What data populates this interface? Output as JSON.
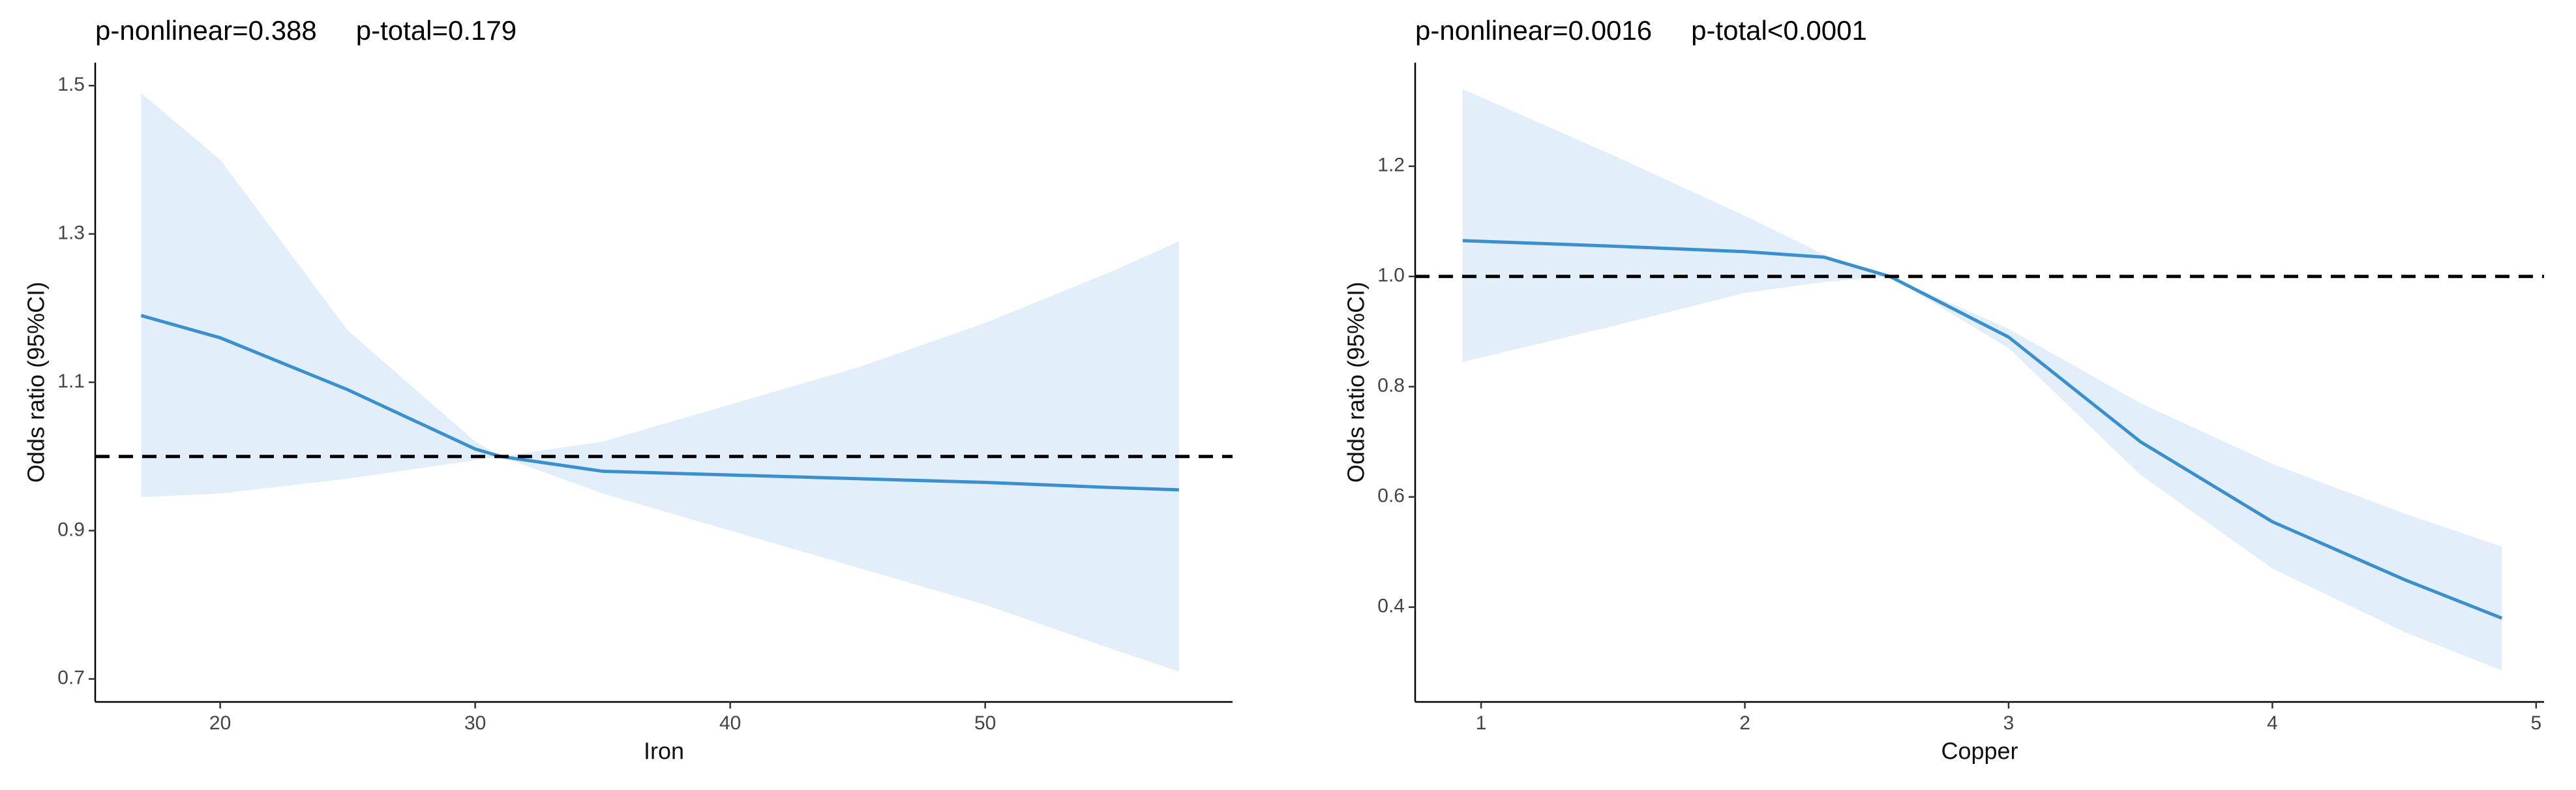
{
  "chart_data": [
    {
      "type": "line",
      "annotations": [
        "p-nonlinear=0.388",
        "p-total=0.179"
      ],
      "x_label": "Iron",
      "y_label": "Odds ratio (95%CI)",
      "x": [
        16.9,
        20,
        25,
        30,
        31,
        35,
        40,
        45,
        50,
        55,
        57.6
      ],
      "values": [
        1.19,
        1.16,
        1.09,
        1.01,
        1.0,
        0.98,
        0.975,
        0.97,
        0.965,
        0.958,
        0.955
      ],
      "ci_upper": [
        1.49,
        1.4,
        1.17,
        1.02,
        1.0,
        1.02,
        1.07,
        1.12,
        1.18,
        1.25,
        1.29
      ],
      "ci_lower": [
        0.945,
        0.95,
        0.97,
        0.995,
        1.0,
        0.95,
        0.9,
        0.85,
        0.8,
        0.74,
        0.71
      ],
      "color": "#3a8fcf",
      "ci_color": "#e2eef9",
      "reference_line": 1,
      "xlim": [
        15.1,
        59.7
      ],
      "xticks": [
        20,
        30,
        40,
        50
      ],
      "ylim": [
        0.669,
        1.531
      ],
      "yticks": [
        0.7,
        0.9,
        1.1,
        1.3,
        1.5
      ],
      "grid": false
    },
    {
      "type": "line",
      "annotations": [
        "p-nonlinear=0.0016",
        "p-total<0.0001"
      ],
      "x_label": "Copper",
      "y_label": "Odds ratio (95%CI)",
      "x": [
        0.93,
        1.5,
        2,
        2.3,
        2.55,
        3,
        3.5,
        4,
        4.5,
        4.87
      ],
      "values": [
        1.065,
        1.055,
        1.045,
        1.035,
        1.0,
        0.89,
        0.7,
        0.555,
        0.45,
        0.38
      ],
      "ci_upper": [
        1.34,
        1.22,
        1.11,
        1.04,
        1.0,
        0.905,
        0.77,
        0.66,
        0.57,
        0.51
      ],
      "ci_lower": [
        0.845,
        0.91,
        0.97,
        0.99,
        1.0,
        0.87,
        0.64,
        0.47,
        0.355,
        0.285
      ],
      "color": "#3a8fcf",
      "ci_color": "#e2eef9",
      "reference_line": 1,
      "xlim": [
        0.75,
        5.03
      ],
      "xticks": [
        1,
        2,
        3,
        4,
        5
      ],
      "ylim": [
        0.228,
        1.388
      ],
      "yticks": [
        0.4,
        0.6,
        0.8,
        {
          "value": 1,
          "label": "1.0"
        },
        1.2
      ],
      "grid": false
    }
  ]
}
